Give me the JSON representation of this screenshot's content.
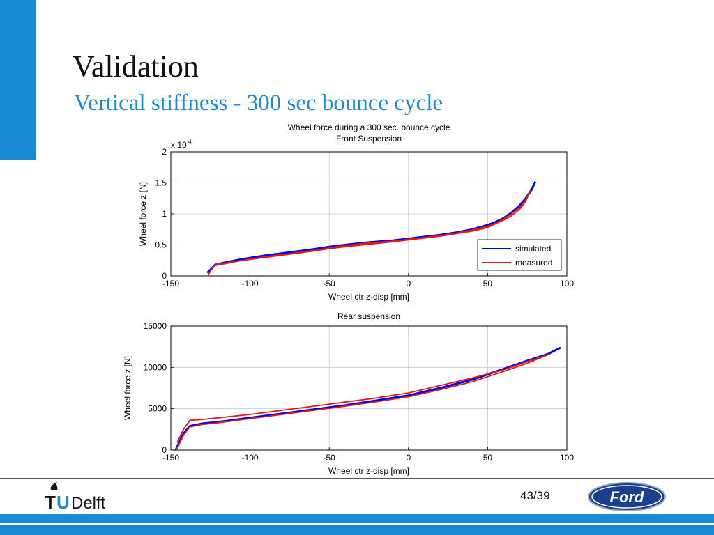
{
  "slide": {
    "title": "Validation",
    "subtitle": "Vertical stiffness - 300 sec bounce cycle",
    "page_number": "43/39",
    "logo_left_text": "Delft",
    "logo_right_text": "Ford"
  },
  "colors": {
    "accent": "#1a8ad6",
    "simulated": "#0000ee",
    "measured": "#e01818"
  },
  "chart_data": [
    {
      "type": "line",
      "title": "Wheel force during a 300 sec. bounce cycle",
      "subtitle": "Front Suspension",
      "xlabel": "Wheel ctr z-disp [mm]",
      "ylabel": "Wheel force z [N]",
      "y_scale_label": "x 10",
      "y_scale_exponent": "4",
      "xlim": [
        -150,
        100
      ],
      "ylim": [
        0,
        2
      ],
      "xticks": [
        -150,
        -100,
        -50,
        0,
        50,
        100
      ],
      "yticks": [
        0,
        0.5,
        1,
        1.5,
        2
      ],
      "ytick_labels": [
        "0",
        "0.5",
        "1",
        "1.5",
        "2"
      ],
      "grid": true,
      "legend": "bottom-right",
      "series": [
        {
          "name": "simulated",
          "x": [
            -127,
            -125,
            -122,
            -115,
            -105,
            -90,
            -75,
            -60,
            -50,
            -40,
            -25,
            -10,
            0,
            10,
            20,
            30,
            40,
            50,
            55,
            60,
            65,
            70,
            74,
            78,
            80
          ],
          "y": [
            0.05,
            0.1,
            0.18,
            0.22,
            0.27,
            0.33,
            0.38,
            0.43,
            0.47,
            0.5,
            0.54,
            0.57,
            0.6,
            0.63,
            0.66,
            0.7,
            0.75,
            0.82,
            0.87,
            0.93,
            1.02,
            1.13,
            1.25,
            1.4,
            1.52
          ]
        },
        {
          "name": "measured",
          "x": [
            -127,
            -125,
            -122,
            -115,
            -105,
            -90,
            -75,
            -60,
            -50,
            -40,
            -25,
            -10,
            0,
            10,
            20,
            30,
            40,
            50,
            55,
            60,
            65,
            70,
            74,
            77,
            74,
            70,
            65,
            60,
            55,
            50,
            40,
            30,
            20,
            10,
            0,
            -10,
            -25,
            -40,
            -50,
            -60,
            -75,
            -90,
            -105,
            -115,
            -121,
            -124
          ],
          "y": [
            -0.02,
            0.08,
            0.17,
            0.2,
            0.25,
            0.31,
            0.36,
            0.41,
            0.45,
            0.49,
            0.53,
            0.56,
            0.59,
            0.62,
            0.65,
            0.69,
            0.74,
            0.8,
            0.85,
            0.92,
            1.0,
            1.1,
            1.22,
            1.38,
            1.2,
            1.07,
            0.97,
            0.9,
            0.84,
            0.78,
            0.72,
            0.68,
            0.64,
            0.61,
            0.58,
            0.55,
            0.51,
            0.47,
            0.44,
            0.4,
            0.35,
            0.3,
            0.25,
            0.21,
            0.19,
            0.12
          ]
        }
      ]
    },
    {
      "type": "line",
      "title": "Rear suspension",
      "xlabel": "Wheel ctr z-disp [mm]",
      "ylabel": "Wheel force z [N]",
      "xlim": [
        -150,
        100
      ],
      "ylim": [
        0,
        15000
      ],
      "xticks": [
        -150,
        -100,
        -50,
        0,
        50,
        100
      ],
      "yticks": [
        0,
        5000,
        10000,
        15000
      ],
      "ytick_labels": [
        "0",
        "5000",
        "10000",
        "15000"
      ],
      "grid": true,
      "series": [
        {
          "name": "simulated",
          "x": [
            -147,
            -145,
            -142,
            -138,
            -130,
            -120,
            -100,
            -80,
            -60,
            -40,
            -20,
            0,
            20,
            40,
            60,
            75,
            88,
            96
          ],
          "y": [
            0,
            800,
            2000,
            2900,
            3200,
            3400,
            3900,
            4400,
            4900,
            5400,
            6000,
            6600,
            7500,
            8500,
            9800,
            10800,
            11600,
            12400
          ]
        },
        {
          "name": "measured",
          "x": [
            -147,
            -145,
            -142,
            -138,
            -130,
            -120,
            -100,
            -80,
            -60,
            -40,
            -20,
            0,
            20,
            40,
            60,
            75,
            89,
            75,
            60,
            40,
            20,
            0,
            -20,
            -40,
            -60,
            -80,
            -100,
            -120,
            -130,
            -138,
            -142,
            -146
          ],
          "y": [
            -100,
            600,
            1800,
            2800,
            3100,
            3300,
            3800,
            4300,
            4800,
            5300,
            5850,
            6450,
            7300,
            8250,
            9500,
            10500,
            11600,
            10700,
            9700,
            8700,
            7800,
            6900,
            6300,
            5800,
            5300,
            4800,
            4300,
            3900,
            3700,
            3600,
            2500,
            900
          ]
        }
      ]
    }
  ]
}
